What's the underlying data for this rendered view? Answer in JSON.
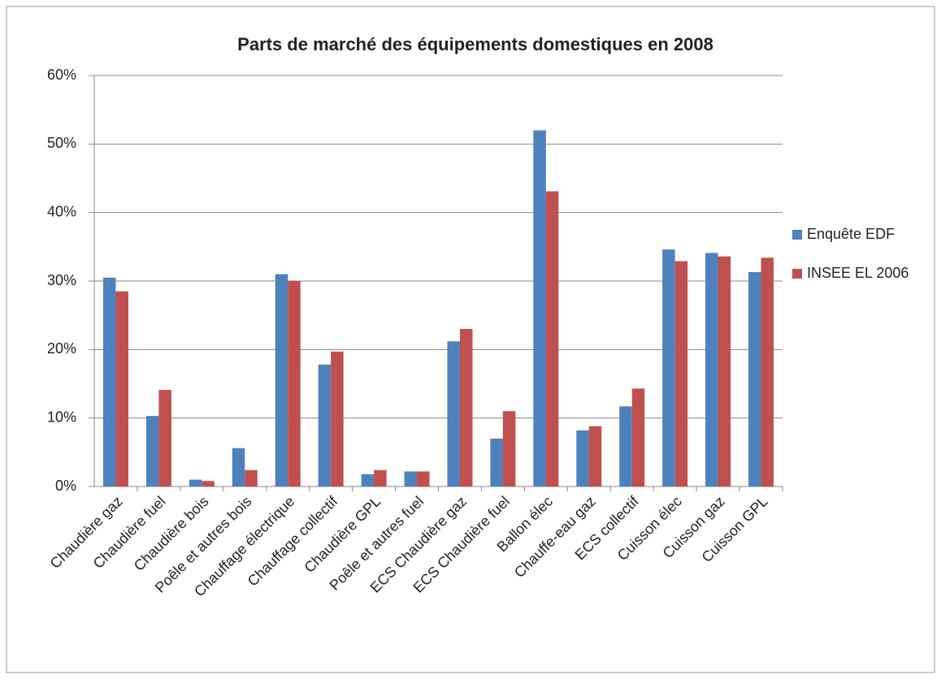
{
  "chart_data": {
    "type": "bar",
    "title": "Parts de marché des équipements domestiques en 2008",
    "categories": [
      "Chaudière gaz",
      "Chaudière fuel",
      "Chaudière bois",
      "Poêle et autres bois",
      "Chauffage électrique",
      "Chauffage collectif",
      "Chaudière GPL",
      "Poêle et autres fuel",
      "ECS Chaudière gaz",
      "ECS Chaudière fuel",
      "Ballon élec",
      "Chauffe-eau gaz",
      "ECS collectif",
      "Cuisson élec",
      "Cuisson gaz",
      "Cuisson GPL"
    ],
    "series": [
      {
        "name": "Enquête EDF",
        "color": "#4f81bd",
        "values": [
          30.5,
          10.3,
          1.0,
          5.6,
          31.0,
          17.8,
          1.8,
          2.2,
          21.2,
          7.0,
          52.0,
          8.2,
          11.7,
          34.6,
          34.1,
          31.3
        ]
      },
      {
        "name": "INSEE EL 2006",
        "color": "#c0504d",
        "values": [
          28.5,
          14.1,
          0.8,
          2.4,
          30.0,
          19.7,
          2.4,
          2.2,
          23.0,
          11.0,
          43.1,
          8.8,
          14.3,
          32.9,
          33.6,
          33.4
        ]
      }
    ],
    "ylim": [
      0,
      60
    ],
    "yticks": [
      {
        "value": 0,
        "label": "0%"
      },
      {
        "value": 10,
        "label": "10%"
      },
      {
        "value": 20,
        "label": "20%"
      },
      {
        "value": 30,
        "label": "30%"
      },
      {
        "value": 40,
        "label": "40%"
      },
      {
        "value": 50,
        "label": "50%"
      },
      {
        "value": 60,
        "label": "60%"
      }
    ],
    "grid": true,
    "legend": "right"
  }
}
